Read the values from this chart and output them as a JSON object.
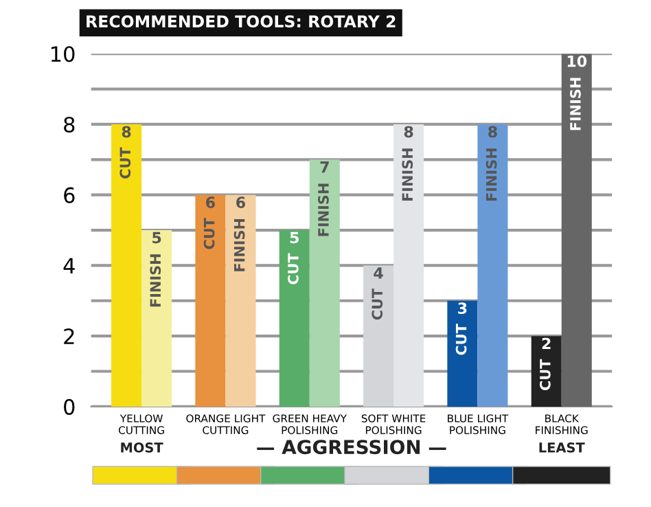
{
  "chart_data": {
    "type": "bar",
    "title": "RECOMMENDED TOOLS: ROTARY 2",
    "categories": [
      "YELLOW\nCUTTING",
      "ORANGE LIGHT\nCUTTING",
      "GREEN HEAVY\nPOLISHING",
      "SOFT WHITE\nPOLISHING",
      "BLUE LIGHT\nPOLISHING",
      "BLACK\nFINISHING"
    ],
    "series": [
      {
        "name": "CUT",
        "colors": [
          "#f5dd12",
          "#e8913f",
          "#58ad68",
          "#d3d5d9",
          "#0c55a2",
          "#222222"
        ],
        "values": [
          8,
          6,
          5,
          4,
          3,
          2
        ]
      },
      {
        "name": "FINISH",
        "colors": [
          "#f5ee9c",
          "#f4cfa0",
          "#a9d6ac",
          "#e4e5e8",
          "#6a9ad6",
          "#666666"
        ],
        "values": [
          5,
          6,
          7,
          8,
          8,
          10
        ]
      }
    ],
    "ylim": [
      0,
      10
    ],
    "yticks": [
      0,
      {
        "value": 1,
        "label": null
      },
      2,
      {
        "value": 3,
        "label": null
      },
      4,
      {
        "value": 5,
        "label": null
      },
      6,
      {
        "value": 7,
        "label": null
      },
      8,
      {
        "value": 9,
        "label": null
      },
      10
    ],
    "grid": "y",
    "data_labels": true,
    "legend": false,
    "annotations": [
      "MOST",
      "— AGGRESSION —",
      "LEAST"
    ]
  }
}
